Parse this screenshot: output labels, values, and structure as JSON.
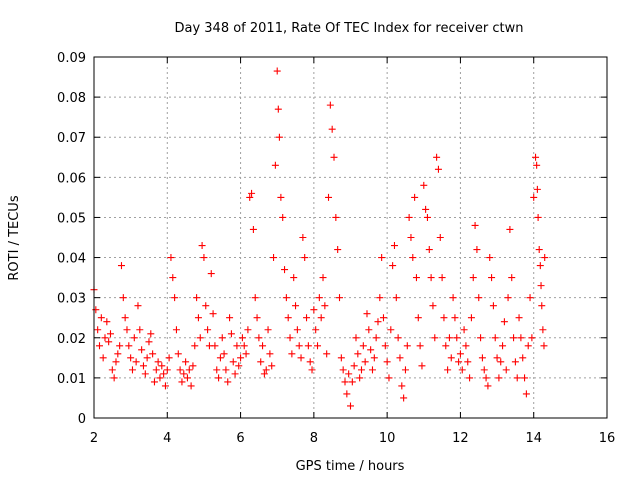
{
  "chart_data": {
    "type": "scatter",
    "title": "Day 348 of 2011, Rate Of TEC Index for receiver ctwn",
    "xlabel": "GPS time / hours",
    "ylabel": "ROTI / TECUs",
    "xlim": [
      2,
      16
    ],
    "ylim": [
      0,
      0.09
    ],
    "xticks": [
      "2",
      "4",
      "6",
      "8",
      "10",
      "12",
      "14",
      "16"
    ],
    "yticks": [
      "0",
      "0.01",
      "0.02",
      "0.03",
      "0.04",
      "0.05",
      "0.06",
      "0.07",
      "0.08",
      "0.09"
    ],
    "grid": true,
    "marker": "+",
    "color": "#ff0000",
    "series": [
      {
        "points": [
          [
            2.0,
            0.032
          ],
          [
            2.05,
            0.027
          ],
          [
            2.1,
            0.022
          ],
          [
            2.15,
            0.018
          ],
          [
            2.2,
            0.025
          ],
          [
            2.25,
            0.015
          ],
          [
            2.3,
            0.02
          ],
          [
            2.35,
            0.024
          ],
          [
            2.4,
            0.019
          ],
          [
            2.45,
            0.021
          ],
          [
            2.5,
            0.012
          ],
          [
            2.55,
            0.01
          ],
          [
            2.6,
            0.014
          ],
          [
            2.65,
            0.016
          ],
          [
            2.7,
            0.018
          ],
          [
            2.75,
            0.038
          ],
          [
            2.8,
            0.03
          ],
          [
            2.85,
            0.025
          ],
          [
            2.9,
            0.022
          ],
          [
            2.95,
            0.018
          ],
          [
            3.0,
            0.015
          ],
          [
            3.05,
            0.012
          ],
          [
            3.1,
            0.02
          ],
          [
            3.15,
            0.014
          ],
          [
            3.2,
            0.028
          ],
          [
            3.25,
            0.022
          ],
          [
            3.3,
            0.017
          ],
          [
            3.35,
            0.013
          ],
          [
            3.4,
            0.011
          ],
          [
            3.45,
            0.015
          ],
          [
            3.5,
            0.019
          ],
          [
            3.55,
            0.021
          ],
          [
            3.6,
            0.016
          ],
          [
            3.65,
            0.009
          ],
          [
            3.7,
            0.012
          ],
          [
            3.75,
            0.014
          ],
          [
            3.8,
            0.01
          ],
          [
            3.85,
            0.013
          ],
          [
            3.9,
            0.011
          ],
          [
            3.95,
            0.008
          ],
          [
            4.0,
            0.012
          ],
          [
            4.05,
            0.015
          ],
          [
            4.1,
            0.04
          ],
          [
            4.15,
            0.035
          ],
          [
            4.2,
            0.03
          ],
          [
            4.25,
            0.022
          ],
          [
            4.3,
            0.016
          ],
          [
            4.35,
            0.012
          ],
          [
            4.4,
            0.009
          ],
          [
            4.45,
            0.011
          ],
          [
            4.5,
            0.014
          ],
          [
            4.55,
            0.01
          ],
          [
            4.6,
            0.012
          ],
          [
            4.65,
            0.008
          ],
          [
            4.7,
            0.013
          ],
          [
            4.75,
            0.018
          ],
          [
            4.8,
            0.03
          ],
          [
            4.85,
            0.025
          ],
          [
            4.9,
            0.02
          ],
          [
            4.95,
            0.043
          ],
          [
            5.0,
            0.04
          ],
          [
            5.05,
            0.028
          ],
          [
            5.1,
            0.022
          ],
          [
            5.15,
            0.018
          ],
          [
            5.2,
            0.036
          ],
          [
            5.25,
            0.026
          ],
          [
            5.3,
            0.018
          ],
          [
            5.35,
            0.012
          ],
          [
            5.4,
            0.01
          ],
          [
            5.45,
            0.015
          ],
          [
            5.5,
            0.02
          ],
          [
            5.55,
            0.016
          ],
          [
            5.6,
            0.012
          ],
          [
            5.65,
            0.009
          ],
          [
            5.7,
            0.025
          ],
          [
            5.75,
            0.021
          ],
          [
            5.8,
            0.014
          ],
          [
            5.85,
            0.011
          ],
          [
            5.9,
            0.018
          ],
          [
            5.95,
            0.013
          ],
          [
            6.0,
            0.015
          ],
          [
            6.05,
            0.02
          ],
          [
            6.1,
            0.018
          ],
          [
            6.15,
            0.016
          ],
          [
            6.2,
            0.022
          ],
          [
            6.25,
            0.055
          ],
          [
            6.3,
            0.056
          ],
          [
            6.35,
            0.047
          ],
          [
            6.4,
            0.03
          ],
          [
            6.45,
            0.025
          ],
          [
            6.5,
            0.02
          ],
          [
            6.55,
            0.014
          ],
          [
            6.6,
            0.018
          ],
          [
            6.65,
            0.011
          ],
          [
            6.7,
            0.012
          ],
          [
            6.75,
            0.022
          ],
          [
            6.8,
            0.016
          ],
          [
            6.85,
            0.013
          ],
          [
            6.9,
            0.04
          ],
          [
            6.95,
            0.063
          ],
          [
            7.0,
            0.0865
          ],
          [
            7.03,
            0.077
          ],
          [
            7.06,
            0.07
          ],
          [
            7.1,
            0.055
          ],
          [
            7.15,
            0.05
          ],
          [
            7.2,
            0.037
          ],
          [
            7.25,
            0.03
          ],
          [
            7.3,
            0.025
          ],
          [
            7.35,
            0.02
          ],
          [
            7.4,
            0.016
          ],
          [
            7.45,
            0.035
          ],
          [
            7.5,
            0.028
          ],
          [
            7.55,
            0.022
          ],
          [
            7.6,
            0.018
          ],
          [
            7.65,
            0.015
          ],
          [
            7.7,
            0.045
          ],
          [
            7.75,
            0.04
          ],
          [
            7.8,
            0.025
          ],
          [
            7.85,
            0.018
          ],
          [
            7.9,
            0.014
          ],
          [
            7.95,
            0.012
          ],
          [
            8.0,
            0.027
          ],
          [
            8.05,
            0.022
          ],
          [
            8.1,
            0.018
          ],
          [
            8.15,
            0.03
          ],
          [
            8.2,
            0.025
          ],
          [
            8.25,
            0.035
          ],
          [
            8.3,
            0.028
          ],
          [
            8.35,
            0.016
          ],
          [
            8.4,
            0.055
          ],
          [
            8.45,
            0.078
          ],
          [
            8.5,
            0.072
          ],
          [
            8.55,
            0.065
          ],
          [
            8.6,
            0.05
          ],
          [
            8.65,
            0.042
          ],
          [
            8.7,
            0.03
          ],
          [
            8.75,
            0.015
          ],
          [
            8.8,
            0.012
          ],
          [
            8.85,
            0.009
          ],
          [
            8.9,
            0.006
          ],
          [
            8.95,
            0.011
          ],
          [
            9.0,
            0.003
          ],
          [
            9.05,
            0.009
          ],
          [
            9.1,
            0.013
          ],
          [
            9.15,
            0.02
          ],
          [
            9.2,
            0.016
          ],
          [
            9.25,
            0.01
          ],
          [
            9.3,
            0.012
          ],
          [
            9.35,
            0.018
          ],
          [
            9.4,
            0.014
          ],
          [
            9.45,
            0.026
          ],
          [
            9.5,
            0.022
          ],
          [
            9.55,
            0.017
          ],
          [
            9.6,
            0.012
          ],
          [
            9.65,
            0.015
          ],
          [
            9.7,
            0.02
          ],
          [
            9.75,
            0.024
          ],
          [
            9.8,
            0.03
          ],
          [
            9.85,
            0.04
          ],
          [
            9.9,
            0.025
          ],
          [
            9.95,
            0.018
          ],
          [
            10.0,
            0.014
          ],
          [
            10.05,
            0.01
          ],
          [
            10.1,
            0.022
          ],
          [
            10.15,
            0.038
          ],
          [
            10.2,
            0.043
          ],
          [
            10.25,
            0.03
          ],
          [
            10.3,
            0.02
          ],
          [
            10.35,
            0.015
          ],
          [
            10.4,
            0.008
          ],
          [
            10.45,
            0.005
          ],
          [
            10.5,
            0.012
          ],
          [
            10.55,
            0.018
          ],
          [
            10.6,
            0.05
          ],
          [
            10.65,
            0.045
          ],
          [
            10.7,
            0.04
          ],
          [
            10.75,
            0.055
          ],
          [
            10.8,
            0.035
          ],
          [
            10.85,
            0.025
          ],
          [
            10.9,
            0.018
          ],
          [
            10.95,
            0.013
          ],
          [
            11.0,
            0.058
          ],
          [
            11.05,
            0.052
          ],
          [
            11.1,
            0.05
          ],
          [
            11.15,
            0.042
          ],
          [
            11.2,
            0.035
          ],
          [
            11.25,
            0.028
          ],
          [
            11.3,
            0.02
          ],
          [
            11.35,
            0.065
          ],
          [
            11.4,
            0.062
          ],
          [
            11.45,
            0.045
          ],
          [
            11.5,
            0.035
          ],
          [
            11.55,
            0.025
          ],
          [
            11.6,
            0.018
          ],
          [
            11.65,
            0.012
          ],
          [
            11.7,
            0.02
          ],
          [
            11.75,
            0.015
          ],
          [
            11.8,
            0.03
          ],
          [
            11.85,
            0.025
          ],
          [
            11.9,
            0.02
          ],
          [
            11.95,
            0.014
          ],
          [
            12.0,
            0.016
          ],
          [
            12.05,
            0.012
          ],
          [
            12.1,
            0.022
          ],
          [
            12.15,
            0.018
          ],
          [
            12.2,
            0.014
          ],
          [
            12.25,
            0.01
          ],
          [
            12.3,
            0.025
          ],
          [
            12.35,
            0.035
          ],
          [
            12.4,
            0.048
          ],
          [
            12.45,
            0.042
          ],
          [
            12.5,
            0.03
          ],
          [
            12.55,
            0.02
          ],
          [
            12.6,
            0.015
          ],
          [
            12.65,
            0.012
          ],
          [
            12.7,
            0.01
          ],
          [
            12.75,
            0.008
          ],
          [
            12.8,
            0.04
          ],
          [
            12.85,
            0.035
          ],
          [
            12.9,
            0.028
          ],
          [
            12.95,
            0.02
          ],
          [
            13.0,
            0.015
          ],
          [
            13.05,
            0.01
          ],
          [
            13.1,
            0.014
          ],
          [
            13.15,
            0.018
          ],
          [
            13.2,
            0.024
          ],
          [
            13.25,
            0.012
          ],
          [
            13.3,
            0.03
          ],
          [
            13.35,
            0.047
          ],
          [
            13.4,
            0.035
          ],
          [
            13.45,
            0.02
          ],
          [
            13.5,
            0.014
          ],
          [
            13.55,
            0.01
          ],
          [
            13.6,
            0.025
          ],
          [
            13.65,
            0.02
          ],
          [
            13.7,
            0.015
          ],
          [
            13.75,
            0.01
          ],
          [
            13.8,
            0.006
          ],
          [
            13.85,
            0.018
          ],
          [
            13.9,
            0.03
          ],
          [
            13.95,
            0.02
          ],
          [
            14.0,
            0.055
          ],
          [
            14.05,
            0.065
          ],
          [
            14.08,
            0.063
          ],
          [
            14.1,
            0.057
          ],
          [
            14.12,
            0.05
          ],
          [
            14.15,
            0.042
          ],
          [
            14.18,
            0.038
          ],
          [
            14.2,
            0.033
          ],
          [
            14.22,
            0.028
          ],
          [
            14.25,
            0.022
          ],
          [
            14.28,
            0.018
          ],
          [
            14.3,
            0.04
          ]
        ]
      }
    ]
  }
}
